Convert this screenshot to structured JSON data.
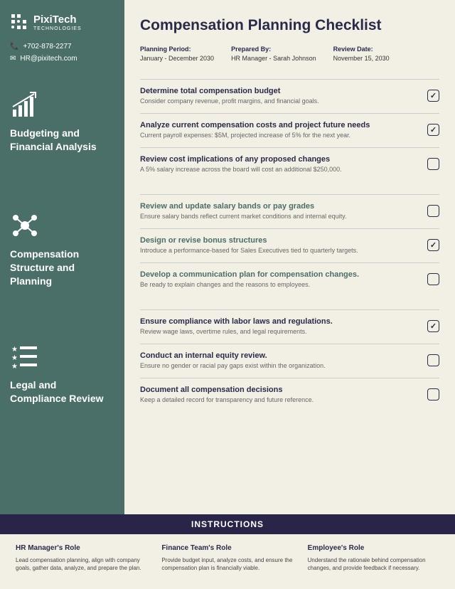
{
  "logo": {
    "name": "PixiTech",
    "sub": "TECHNOLOGIES"
  },
  "contact": {
    "phone": "+702-878-2277",
    "email": "HR@pixitech.com"
  },
  "sections": [
    {
      "title": "Budgeting and Financial Analysis"
    },
    {
      "title": "Compensation Structure and Planning"
    },
    {
      "title": "Legal and Compliance Review"
    }
  ],
  "title": "Compensation Planning Checklist",
  "meta": [
    {
      "label": "Planning Period:",
      "value": "January - December 2030"
    },
    {
      "label": "Prepared By:",
      "value": "HR Manager - Sarah Johnson"
    },
    {
      "label": "Review Date:",
      "value": "November 15, 2030"
    }
  ],
  "items": [
    {
      "title": "Determine total compensation budget",
      "desc": "Consider company revenue, profit margins, and financial goals.",
      "checked": true,
      "teal": false
    },
    {
      "title": "Analyze current compensation costs and project future needs",
      "desc": "Current payroll expenses: $5M, projected increase of 5% for the next year.",
      "checked": true,
      "teal": false
    },
    {
      "title": "Review cost implications of any proposed changes",
      "desc": "A 5% salary increase across the board will cost an additional $250,000.",
      "checked": false,
      "teal": false
    },
    {
      "title": "Review and update salary bands or pay grades",
      "desc": "Ensure salary bands reflect current market conditions and internal equity.",
      "checked": false,
      "teal": true
    },
    {
      "title": "Design or revise bonus structures",
      "desc": "Introduce a performance-based for Sales Executives tied to quarterly targets.",
      "checked": true,
      "teal": true
    },
    {
      "title": "Develop a communication plan for compensation changes.",
      "desc": "Be ready to explain changes and the reasons to employees.",
      "checked": false,
      "teal": true
    },
    {
      "title": "Ensure compliance with labor laws and regulations.",
      "desc": "Review wage laws, overtime rules, and legal requirements.",
      "checked": true,
      "teal": false
    },
    {
      "title": "Conduct an internal equity review.",
      "desc": "Ensure no gender or racial pay gaps exist within the organization.",
      "checked": false,
      "teal": false
    },
    {
      "title": "Document all compensation decisions",
      "desc": "Keep a detailed record for transparency and future reference.",
      "checked": false,
      "teal": false
    }
  ],
  "instructionsTitle": "INSTRUCTIONS",
  "instructions": [
    {
      "title": "HR Manager's Role",
      "text": "Lead compensation planning, align with company goals, gather data, analyze, and prepare the plan."
    },
    {
      "title": "Finance Team's Role",
      "text": "Provide budget input, analyze costs, and ensure the compensation plan is financially viable."
    },
    {
      "title": "Employee's Role",
      "text": "Understand the rationale behind compensation changes, and provide feedback if necessary."
    }
  ]
}
